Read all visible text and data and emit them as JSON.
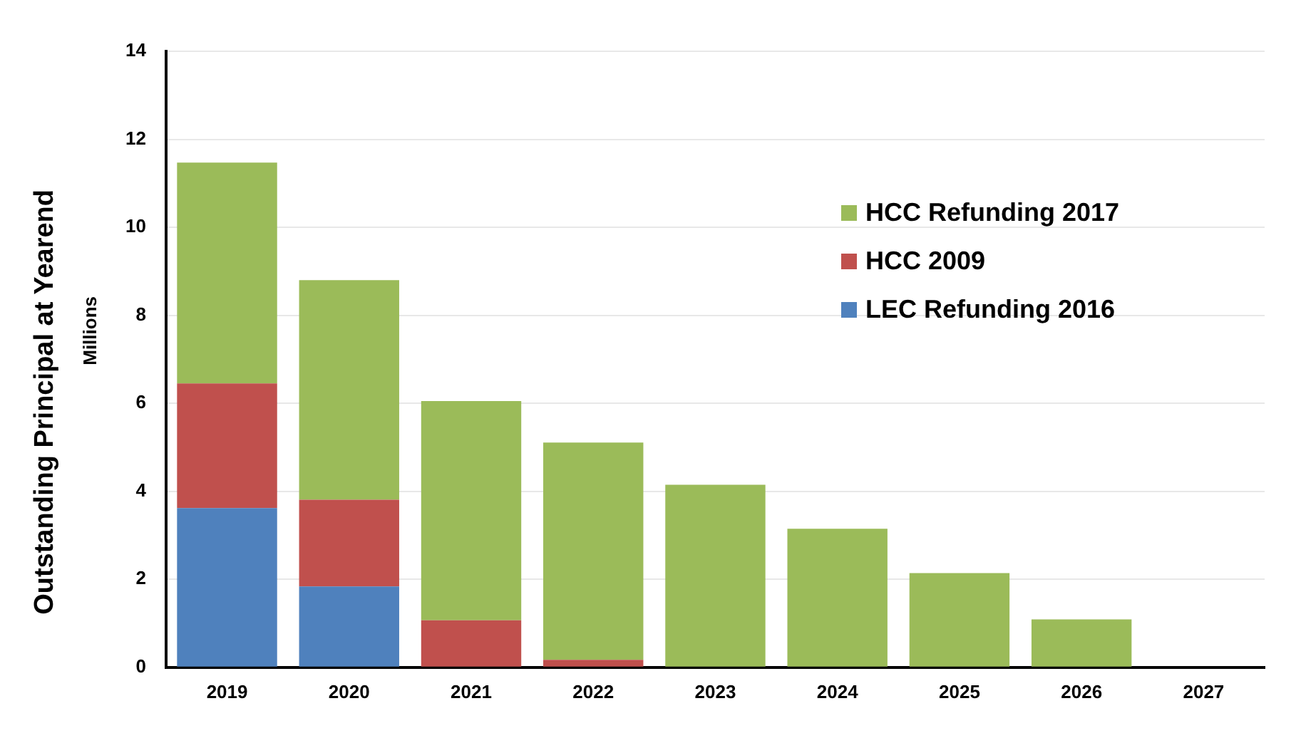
{
  "chart_data": {
    "type": "bar",
    "ylabel": "Outstanding Principal at Yearend",
    "annotations": [
      "Millions"
    ],
    "categories": [
      "2019",
      "2020",
      "2021",
      "2022",
      "2023",
      "2024",
      "2025",
      "2026",
      "2027"
    ],
    "stacked": true,
    "series": [
      {
        "name": "LEC Refunding 2016",
        "color": "#4f81bd",
        "values": [
          3.62,
          1.84,
          0,
          0,
          0,
          0,
          0,
          0,
          0
        ]
      },
      {
        "name": "HCC 2009",
        "color": "#c0504d",
        "values": [
          2.83,
          1.97,
          1.07,
          0.17,
          0,
          0,
          0,
          0,
          0
        ]
      },
      {
        "name": "HCC Refunding 2017",
        "color": "#9bbb59",
        "values": [
          5.02,
          4.99,
          4.98,
          4.94,
          4.15,
          3.15,
          2.14,
          1.09,
          0
        ]
      }
    ],
    "ylim": [
      0,
      14
    ],
    "yticks": [
      0,
      2,
      4,
      6,
      8,
      10,
      12,
      14
    ],
    "grid": "y",
    "legend": "top right"
  }
}
